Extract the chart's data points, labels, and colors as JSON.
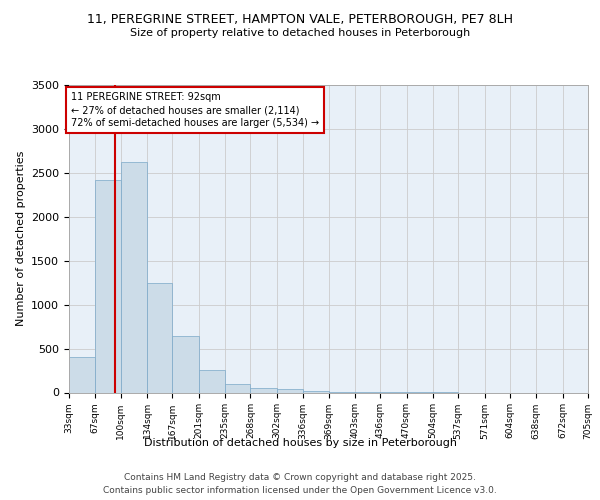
{
  "title1": "11, PEREGRINE STREET, HAMPTON VALE, PETERBOROUGH, PE7 8LH",
  "title2": "Size of property relative to detached houses in Peterborough",
  "xlabel": "Distribution of detached houses by size in Peterborough",
  "ylabel": "Number of detached properties",
  "bin_edges": [
    33,
    67,
    100,
    134,
    167,
    201,
    235,
    268,
    302,
    336,
    369,
    403,
    436,
    470,
    504,
    537,
    571,
    604,
    638,
    672,
    705
  ],
  "bar_heights": [
    400,
    2420,
    2620,
    1250,
    640,
    260,
    100,
    55,
    35,
    20,
    10,
    5,
    2,
    1,
    1,
    0,
    0,
    0,
    0,
    0
  ],
  "bar_color": "#ccdce8",
  "bar_edge_color": "#7aa8c8",
  "grid_color": "#cccccc",
  "background_color": "#e8f0f8",
  "red_line_x": 92,
  "red_line_color": "#cc0000",
  "annotation_title": "11 PEREGRINE STREET: 92sqm",
  "annotation_line1": "← 27% of detached houses are smaller (2,114)",
  "annotation_line2": "72% of semi-detached houses are larger (5,534) →",
  "annotation_box_color": "#cc0000",
  "annotation_bg": "#ffffff",
  "ylim": [
    0,
    3500
  ],
  "yticks": [
    0,
    500,
    1000,
    1500,
    2000,
    2500,
    3000,
    3500
  ],
  "footer1": "Contains HM Land Registry data © Crown copyright and database right 2025.",
  "footer2": "Contains public sector information licensed under the Open Government Licence v3.0."
}
